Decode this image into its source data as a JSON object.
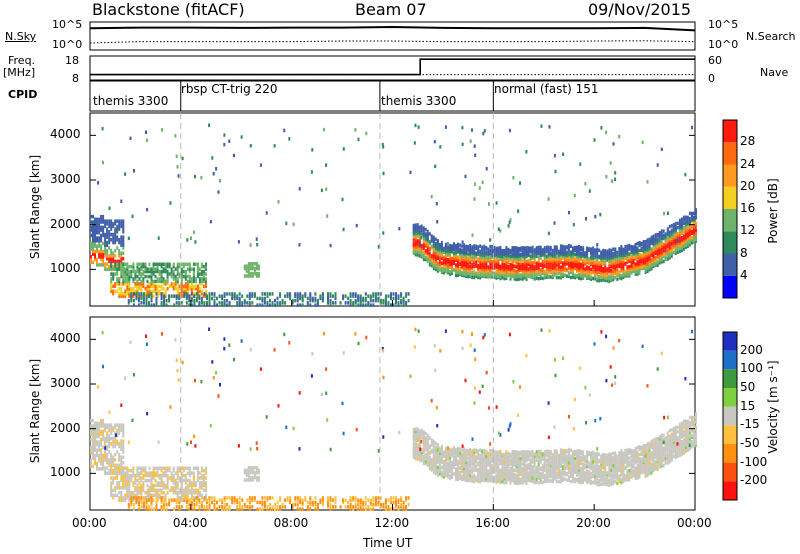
{
  "header": {
    "radar": "Blackstone (fitACF)",
    "beam": "Beam 07",
    "date": "09/Nov/2015"
  },
  "top_panels": {
    "nsky_label": "N.Sky",
    "nsky_ticks": [
      "10^5",
      "10^0"
    ],
    "nsearch_label": "N.Search",
    "nsearch_ticks": [
      "10^5",
      "10^0"
    ],
    "freq_label": "Freq.",
    "freq_unit": "[MHz]",
    "freq_ticks": [
      "18",
      "8"
    ],
    "nave_label": "Nave",
    "nave_ticks": [
      "60",
      "0"
    ],
    "cpid_label": "CPID"
  },
  "cpid_segments": [
    {
      "name": "themis 3300",
      "start": 0.0
    },
    {
      "name": "rbsp CT-trig 220",
      "start": 3.6
    },
    {
      "name": "themis 3300",
      "start": 11.5
    },
    {
      "name": "normal (fast) 151",
      "start": 16.0
    }
  ],
  "colors": {
    "power": [
      "#0000ff",
      "#3f5fa8",
      "#2f8a5a",
      "#6fb36a",
      "#f5cf1f",
      "#ff9a1f",
      "#ff6a10",
      "#ff1a10"
    ],
    "velocity": [
      "#1f2fc0",
      "#1f6fc8",
      "#3f9a3f",
      "#7fd03f",
      "#c8c8c0",
      "#ffc040",
      "#ff9010",
      "#ff5010",
      "#ff1010"
    ]
  },
  "chart_data": [
    {
      "type": "line",
      "title": "N.Sky / N.Search",
      "x": [
        0,
        2,
        4,
        6,
        8,
        10,
        12,
        14,
        16,
        18,
        20,
        22,
        24
      ],
      "series": [
        {
          "name": "N.Sky",
          "values": [
            0.78,
            0.8,
            0.8,
            0.79,
            0.8,
            0.8,
            0.82,
            0.79,
            0.78,
            0.78,
            0.78,
            0.79,
            0.7
          ]
        },
        {
          "name": "N.Search",
          "values": [
            0.25,
            0.3,
            0.3,
            0.3,
            0.3,
            0.32,
            0.32,
            0.3,
            0.3,
            0.3,
            0.32,
            0.33,
            0.3
          ]
        }
      ],
      "xlim": [
        0,
        24
      ]
    },
    {
      "type": "line",
      "title": "Freq. / Nave",
      "x": [
        0,
        13.1,
        13.1,
        24
      ],
      "series": [
        {
          "name": "Freq.",
          "values": [
            10,
            10,
            17,
            17
          ]
        },
        {
          "name": "Nave",
          "values": [
            10,
            10,
            10,
            10
          ]
        }
      ],
      "xlim": [
        0,
        24
      ],
      "ylim": [
        8,
        18
      ]
    },
    {
      "type": "heatmap",
      "title": "Power [dB]",
      "xlabel": "",
      "ylabel": "Slant Range [km]",
      "xlim": [
        0,
        24
      ],
      "ylim": [
        180,
        4500
      ],
      "yticks": [
        1000,
        2000,
        3000,
        4000
      ],
      "colorbar_label": "Power [dB]",
      "colorbar_ticks": [
        4,
        8,
        12,
        16,
        20,
        24,
        28
      ],
      "ridge": [
        {
          "t": 0.0,
          "r": 1300
        },
        {
          "t": 0.5,
          "r": 1200
        },
        {
          "t": 1.5,
          "r": 700
        },
        {
          "t": 2.5,
          "r": 650
        },
        {
          "t": 3.5,
          "r": 800
        },
        {
          "t": 4.6,
          "r": 900
        },
        {
          "t": 13.0,
          "r": 1600
        },
        {
          "t": 13.8,
          "r": 1200
        },
        {
          "t": 15.0,
          "r": 1100
        },
        {
          "t": 17.0,
          "r": 1050
        },
        {
          "t": 19.0,
          "r": 1100
        },
        {
          "t": 20.5,
          "r": 1000
        },
        {
          "t": 22.0,
          "r": 1200
        },
        {
          "t": 24.0,
          "r": 1900
        }
      ]
    },
    {
      "type": "heatmap",
      "title": "Velocity [m s-1]",
      "xlabel": "Time UT",
      "ylabel": "Slant Range [km]",
      "xlim": [
        0,
        24
      ],
      "ylim": [
        180,
        4500
      ],
      "xticks": [
        "00:00",
        "04:00",
        "08:00",
        "12:00",
        "16:00",
        "20:00",
        "00:00"
      ],
      "yticks": [
        1000,
        2000,
        3000,
        4000
      ],
      "colorbar_label": "Velocity [m s-1]",
      "colorbar_ticks": [
        200,
        100,
        50,
        15,
        -15,
        -50,
        -100,
        -200
      ]
    }
  ],
  "axes": {
    "y_label": "Slant Range [km]",
    "x_label": "Time UT",
    "power_cb_label": "Power [dB]",
    "vel_cb_label": "Velocity [m s⁻¹]"
  }
}
